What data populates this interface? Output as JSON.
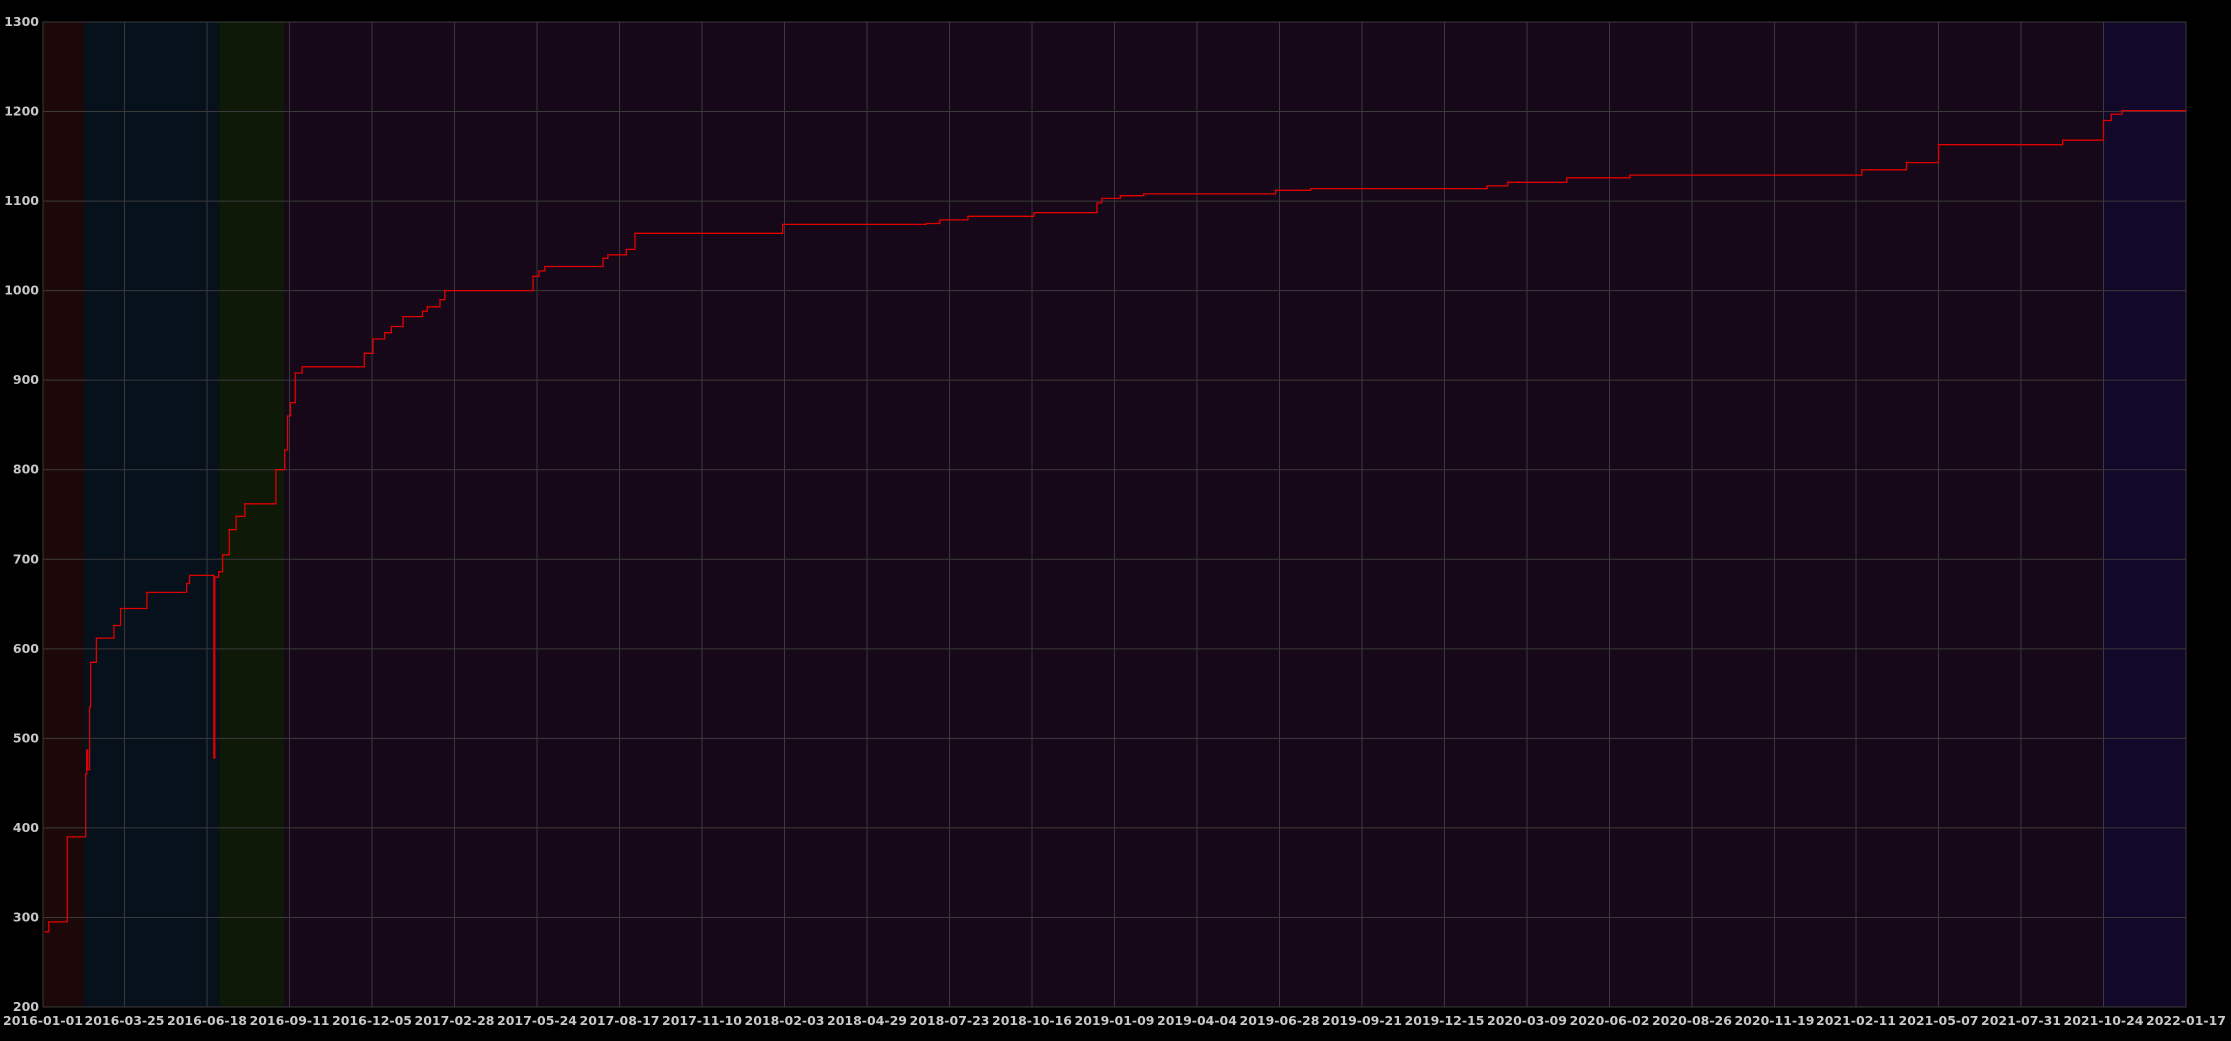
{
  "chart_data": {
    "type": "line",
    "title": "",
    "xlabel": "",
    "ylabel": "",
    "ylim": [
      200,
      1300
    ],
    "xlim": [
      "2016-01-01",
      "2022-01-17"
    ],
    "grid": true,
    "y_ticks": [
      "200",
      "300",
      "400",
      "500",
      "600",
      "700",
      "800",
      "900",
      "1000",
      "1100",
      "1200",
      "1300"
    ],
    "x_ticks": [
      "2016-01-01",
      "2016-03-25",
      "2016-06-18",
      "2016-09-11",
      "2016-12-05",
      "2017-02-28",
      "2017-05-24",
      "2017-08-17",
      "2017-11-10",
      "2018-02-03",
      "2018-04-29",
      "2018-07-23",
      "2018-10-16",
      "2019-01-09",
      "2019-04-04",
      "2019-06-28",
      "2019-09-21",
      "2019-12-15",
      "2020-03-09",
      "2020-06-02",
      "2020-08-26",
      "2020-11-19",
      "2021-02-11",
      "2021-05-07",
      "2021-07-31",
      "2021-10-24",
      "2022-01-17"
    ],
    "colors": {
      "line": "#e00000",
      "background": "#000000",
      "grid": "#3a3a3a",
      "tick_text": "#c8c8c8"
    },
    "background_bands": [
      {
        "from": "2016-01-01",
        "to": "2016-02-12",
        "color": "#1c0808"
      },
      {
        "from": "2016-02-12",
        "to": "2016-07-01",
        "color": "#06111c"
      },
      {
        "from": "2016-07-01",
        "to": "2016-09-06",
        "color": "#0e1908"
      },
      {
        "from": "2016-09-06",
        "to": "2021-10-24",
        "color": "#160818"
      },
      {
        "from": "2021-10-24",
        "to": "2022-01-17",
        "color": "#12082a"
      }
    ],
    "series": [
      {
        "step": "post",
        "points": [
          [
            "2016-01-03",
            284
          ],
          [
            "2016-01-07",
            295
          ],
          [
            "2016-01-26",
            390
          ],
          [
            "2016-02-14",
            460
          ],
          [
            "2016-02-15",
            487
          ],
          [
            "2016-02-16",
            465
          ],
          [
            "2016-02-18",
            535
          ],
          [
            "2016-02-19",
            585
          ],
          [
            "2016-02-25",
            612
          ],
          [
            "2016-03-14",
            626
          ],
          [
            "2016-03-21",
            645
          ],
          [
            "2016-04-17",
            663
          ],
          [
            "2016-05-28",
            673
          ],
          [
            "2016-05-31",
            682
          ],
          [
            "2016-06-25",
            478
          ],
          [
            "2016-06-26",
            680
          ],
          [
            "2016-06-30",
            686
          ],
          [
            "2016-07-04",
            705
          ],
          [
            "2016-07-11",
            733
          ],
          [
            "2016-07-18",
            748
          ],
          [
            "2016-07-27",
            762
          ],
          [
            "2016-08-28",
            800
          ],
          [
            "2016-09-06",
            822
          ],
          [
            "2016-09-09",
            860
          ],
          [
            "2016-09-12",
            875
          ],
          [
            "2016-09-17",
            908
          ],
          [
            "2016-09-24",
            915
          ],
          [
            "2016-11-27",
            930
          ],
          [
            "2016-12-06",
            946
          ],
          [
            "2016-12-18",
            953
          ],
          [
            "2016-12-25",
            960
          ],
          [
            "2017-01-06",
            971
          ],
          [
            "2017-01-26",
            977
          ],
          [
            "2017-01-31",
            982
          ],
          [
            "2017-02-13",
            990
          ],
          [
            "2017-02-18",
            1000
          ],
          [
            "2017-05-20",
            1016
          ],
          [
            "2017-05-26",
            1022
          ],
          [
            "2017-06-01",
            1027
          ],
          [
            "2017-07-31",
            1036
          ],
          [
            "2017-08-05",
            1040
          ],
          [
            "2017-08-24",
            1046
          ],
          [
            "2017-09-02",
            1064
          ],
          [
            "2018-02-01",
            1074
          ],
          [
            "2018-06-29",
            1075
          ],
          [
            "2018-07-13",
            1079
          ],
          [
            "2018-08-11",
            1083
          ],
          [
            "2018-10-18",
            1087
          ],
          [
            "2018-12-22",
            1098
          ],
          [
            "2018-12-27",
            1103
          ],
          [
            "2019-01-15",
            1106
          ],
          [
            "2019-02-08",
            1108
          ],
          [
            "2019-06-24",
            1112
          ],
          [
            "2019-07-30",
            1114
          ],
          [
            "2020-01-28",
            1117
          ],
          [
            "2020-02-18",
            1121
          ],
          [
            "2020-04-19",
            1126
          ],
          [
            "2020-06-23",
            1129
          ],
          [
            "2021-02-17",
            1135
          ],
          [
            "2021-04-04",
            1143
          ],
          [
            "2021-05-07",
            1163
          ],
          [
            "2021-09-12",
            1168
          ],
          [
            "2021-10-24",
            1190
          ],
          [
            "2021-11-01",
            1197
          ],
          [
            "2021-11-12",
            1201
          ],
          [
            "2022-01-17",
            1201
          ]
        ]
      }
    ]
  }
}
